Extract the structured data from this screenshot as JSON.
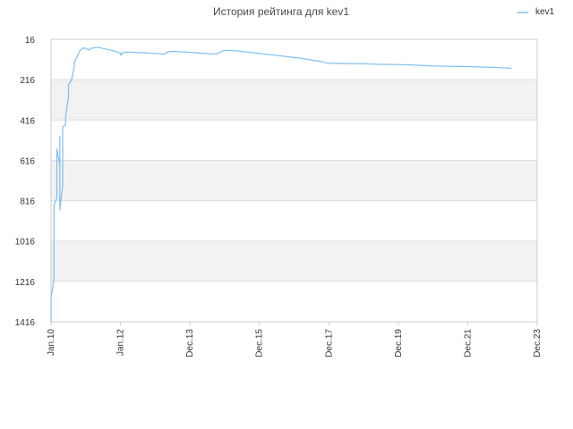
{
  "chart_data": {
    "type": "line",
    "title": "История рейтинга для kev1",
    "xlabel": "",
    "ylabel": "",
    "x_tick_labels": [
      "Jan.10",
      "Jan.12",
      "Dec.13",
      "Dec.15",
      "Dec.17",
      "Dec.19",
      "Dec.21",
      "Dec.23"
    ],
    "y_tick_labels": [
      "16",
      "216",
      "416",
      "616",
      "816",
      "1016",
      "1216",
      "1416"
    ],
    "y_ticks": [
      16,
      216,
      416,
      616,
      816,
      1016,
      1216,
      1416
    ],
    "ylim": [
      16,
      1416
    ],
    "y_inverted": true,
    "xlim": [
      "2010-01",
      "2023-12"
    ],
    "grid": true,
    "legend_position": "top-right",
    "colors": {
      "line": "#7fbfef",
      "band": "#f2f2f2",
      "grid": "#dddddd",
      "axis": "#cccccc"
    },
    "series": [
      {
        "name": "kev1",
        "points": [
          [
            "2010-01",
            1416
          ],
          [
            "2010-01",
            1300
          ],
          [
            "2010-02",
            1200
          ],
          [
            "2010-02",
            1060
          ],
          [
            "2010-02",
            960
          ],
          [
            "2010-02",
            840
          ],
          [
            "2010-03",
            800
          ],
          [
            "2010-03",
            700
          ],
          [
            "2010-03",
            560
          ],
          [
            "2010-04",
            640
          ],
          [
            "2010-04",
            500
          ],
          [
            "2010-04",
            600
          ],
          [
            "2010-04",
            860
          ],
          [
            "2010-05",
            740
          ],
          [
            "2010-05",
            510
          ],
          [
            "2010-05",
            450
          ],
          [
            "2010-06",
            440
          ],
          [
            "2010-06",
            400
          ],
          [
            "2010-07",
            300
          ],
          [
            "2010-07",
            240
          ],
          [
            "2010-08",
            220
          ],
          [
            "2010-09",
            150
          ],
          [
            "2010-09",
            130
          ],
          [
            "2010-10",
            100
          ],
          [
            "2010-11",
            70
          ],
          [
            "2010-12",
            60
          ],
          [
            "2011-01",
            60
          ],
          [
            "2011-02",
            70
          ],
          [
            "2011-03",
            60
          ],
          [
            "2011-05",
            55
          ],
          [
            "2011-08",
            65
          ],
          [
            "2011-11",
            75
          ],
          [
            "2012-01",
            85
          ],
          [
            "2012-01",
            95
          ],
          [
            "2012-02",
            80
          ],
          [
            "2012-04",
            80
          ],
          [
            "2012-09",
            83
          ],
          [
            "2013-01",
            86
          ],
          [
            "2013-04",
            89
          ],
          [
            "2013-05",
            78
          ],
          [
            "2013-07",
            76
          ],
          [
            "2013-11",
            79
          ],
          [
            "2014-03",
            83
          ],
          [
            "2014-08",
            88
          ],
          [
            "2014-10",
            88
          ],
          [
            "2014-12",
            73
          ],
          [
            "2015-02",
            70
          ],
          [
            "2015-06",
            75
          ],
          [
            "2015-12",
            85
          ],
          [
            "2016-06",
            95
          ],
          [
            "2016-12",
            105
          ],
          [
            "2017-03",
            110
          ],
          [
            "2017-06",
            118
          ],
          [
            "2017-09",
            124
          ],
          [
            "2017-12",
            134
          ],
          [
            "2018-06",
            136
          ],
          [
            "2018-12",
            137
          ],
          [
            "2019-06",
            140
          ],
          [
            "2019-12",
            141
          ],
          [
            "2020-06",
            144
          ],
          [
            "2020-12",
            148
          ],
          [
            "2021-06",
            150
          ],
          [
            "2021-12",
            151
          ],
          [
            "2022-06",
            154
          ],
          [
            "2022-12",
            157
          ],
          [
            "2023-03",
            159
          ]
        ]
      }
    ]
  }
}
